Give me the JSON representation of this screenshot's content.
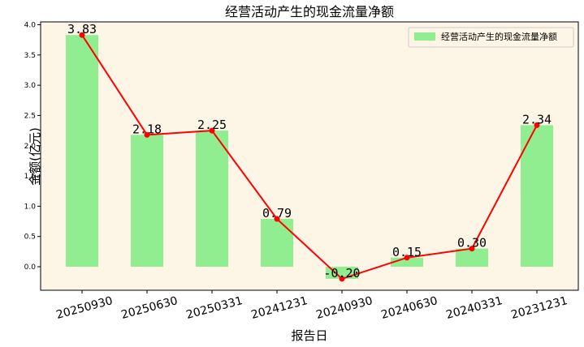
{
  "chart_data": {
    "type": "bar",
    "title": "经营活动产生的现金流量净额",
    "xlabel": "报告日",
    "ylabel": "金额(亿元)",
    "categories": [
      "20250930",
      "20250630",
      "20250331",
      "20241231",
      "20240930",
      "20240630",
      "20240331",
      "20231231"
    ],
    "series": [
      {
        "name": "经营活动产生的现金流量净额",
        "type": "bar",
        "color": "#90ee90",
        "values": [
          3.83,
          2.18,
          2.25,
          0.79,
          -0.2,
          0.15,
          0.3,
          2.34
        ]
      },
      {
        "type": "line",
        "color": "#ff0000",
        "values": [
          3.83,
          2.18,
          2.25,
          0.79,
          -0.2,
          0.15,
          0.3,
          2.34
        ]
      }
    ],
    "data_labels": [
      "3.83",
      "2.18",
      "2.25",
      "0.79",
      "-0.20",
      "0.15",
      "0.30",
      "2.34"
    ],
    "ylim": [
      -0.4,
      4.0
    ],
    "yticks": [
      "0.0",
      "0.5",
      "1.0",
      "1.5",
      "2.0",
      "2.5",
      "3.0",
      "3.5",
      "4.0"
    ],
    "grid": false,
    "legend_position": "top-right",
    "background_color": "#fdf5e6"
  }
}
